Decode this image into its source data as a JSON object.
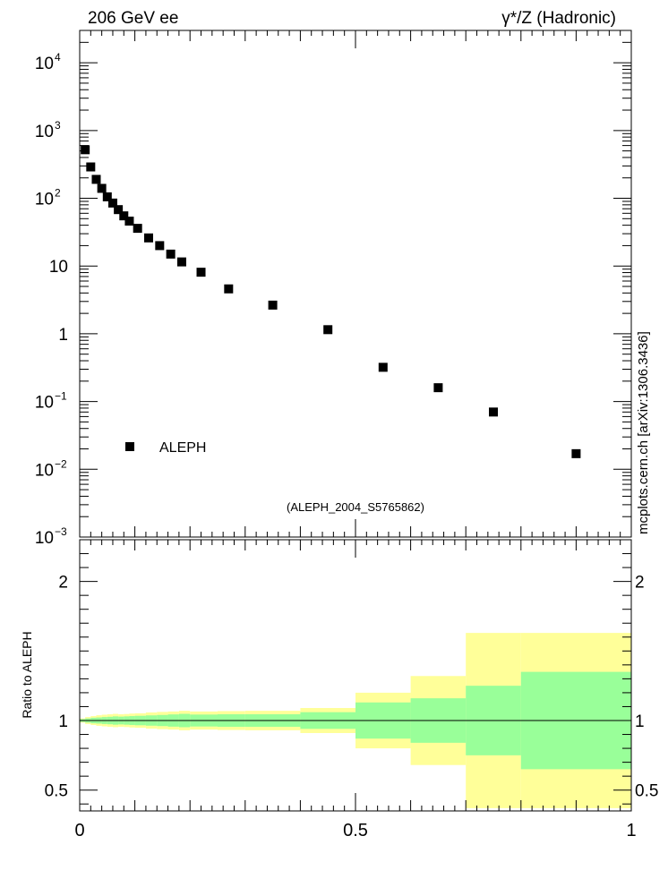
{
  "header": {
    "left_label": "206 GeV ee",
    "right_label": "γ*/Z (Hadronic)"
  },
  "side_label": "mcplots.cern.ch [arXiv:1306.3436]",
  "analysis_label": "(ALEPH_2004_S5765862)",
  "colors": {
    "marker": "#000000",
    "band_inner": "#99ff99",
    "band_outer": "#ffff99",
    "analysis_label": "#999999",
    "side_label": "#888888"
  },
  "chart_data": [
    {
      "type": "scatter",
      "panel": "main",
      "series": [
        {
          "name": "ALEPH",
          "x": [
            0.01,
            0.02,
            0.03,
            0.04,
            0.05,
            0.06,
            0.07,
            0.08,
            0.09,
            0.105,
            0.125,
            0.145,
            0.165,
            0.185,
            0.22,
            0.27,
            0.35,
            0.45,
            0.55,
            0.65,
            0.75,
            0.9
          ],
          "y": [
            520,
            290,
            190,
            140,
            105,
            85,
            68,
            55,
            46,
            36,
            26,
            20,
            15,
            11.5,
            8.1,
            4.6,
            2.65,
            1.15,
            0.32,
            0.16,
            0.07,
            0.017
          ]
        }
      ],
      "ylog": true,
      "ylim": [
        0.001,
        30000
      ],
      "xlim": [
        0,
        1
      ],
      "y_ticks": [
        {
          "value": 10000,
          "base": "10",
          "exp": "4"
        },
        {
          "value": 1000,
          "base": "10",
          "exp": "3"
        },
        {
          "value": 100,
          "base": "10",
          "exp": "2"
        },
        {
          "value": 10,
          "base": "10",
          "exp": ""
        },
        {
          "value": 1,
          "base": "1",
          "exp": ""
        },
        {
          "value": 0.1,
          "base": "10",
          "exp": "−1"
        },
        {
          "value": 0.01,
          "base": "10",
          "exp": "−2"
        },
        {
          "value": 0.001,
          "base": "10",
          "exp": "−3"
        }
      ],
      "legend": {
        "label": "ALEPH",
        "position": "lower-left"
      }
    },
    {
      "type": "area",
      "panel": "ratio",
      "ylabel": "Ratio to ALEPH",
      "xlim": [
        0,
        1
      ],
      "ylim": [
        0.35,
        2.3
      ],
      "x_ticks": [
        "0",
        "0.5",
        "1"
      ],
      "y_ticks": [
        {
          "value": 0.5,
          "label": "0.5"
        },
        {
          "value": 1,
          "label": "1"
        },
        {
          "value": 2,
          "label": "2"
        }
      ],
      "reference_line": 1,
      "bins": [
        {
          "lo": 0.0,
          "hi": 0.01,
          "inner": [
            0.99,
            1.01
          ],
          "outer": [
            0.985,
            1.015
          ]
        },
        {
          "lo": 0.01,
          "hi": 0.02,
          "inner": [
            0.985,
            1.015
          ],
          "outer": [
            0.975,
            1.025
          ]
        },
        {
          "lo": 0.02,
          "hi": 0.03,
          "inner": [
            0.98,
            1.02
          ],
          "outer": [
            0.968,
            1.032
          ]
        },
        {
          "lo": 0.03,
          "hi": 0.04,
          "inner": [
            0.978,
            1.022
          ],
          "outer": [
            0.962,
            1.038
          ]
        },
        {
          "lo": 0.04,
          "hi": 0.05,
          "inner": [
            0.975,
            1.025
          ],
          "outer": [
            0.958,
            1.042
          ]
        },
        {
          "lo": 0.05,
          "hi": 0.06,
          "inner": [
            0.973,
            1.027
          ],
          "outer": [
            0.955,
            1.045
          ]
        },
        {
          "lo": 0.06,
          "hi": 0.07,
          "inner": [
            0.97,
            1.03
          ],
          "outer": [
            0.952,
            1.048
          ]
        },
        {
          "lo": 0.07,
          "hi": 0.08,
          "inner": [
            0.972,
            1.028
          ],
          "outer": [
            0.955,
            1.045
          ]
        },
        {
          "lo": 0.08,
          "hi": 0.09,
          "inner": [
            0.97,
            1.03
          ],
          "outer": [
            0.953,
            1.047
          ]
        },
        {
          "lo": 0.09,
          "hi": 0.1,
          "inner": [
            0.968,
            1.032
          ],
          "outer": [
            0.95,
            1.05
          ]
        },
        {
          "lo": 0.1,
          "hi": 0.12,
          "inner": [
            0.966,
            1.034
          ],
          "outer": [
            0.948,
            1.052
          ]
        },
        {
          "lo": 0.12,
          "hi": 0.14,
          "inner": [
            0.963,
            1.037
          ],
          "outer": [
            0.942,
            1.058
          ]
        },
        {
          "lo": 0.14,
          "hi": 0.16,
          "inner": [
            0.96,
            1.04
          ],
          "outer": [
            0.938,
            1.062
          ]
        },
        {
          "lo": 0.16,
          "hi": 0.18,
          "inner": [
            0.956,
            1.044
          ],
          "outer": [
            0.935,
            1.065
          ]
        },
        {
          "lo": 0.18,
          "hi": 0.2,
          "inner": [
            0.952,
            1.048
          ],
          "outer": [
            0.93,
            1.07
          ]
        },
        {
          "lo": 0.2,
          "hi": 0.25,
          "inner": [
            0.957,
            1.043
          ],
          "outer": [
            0.935,
            1.065
          ]
        },
        {
          "lo": 0.25,
          "hi": 0.3,
          "inner": [
            0.955,
            1.045
          ],
          "outer": [
            0.932,
            1.068
          ]
        },
        {
          "lo": 0.3,
          "hi": 0.4,
          "inner": [
            0.955,
            1.045
          ],
          "outer": [
            0.93,
            1.07
          ]
        },
        {
          "lo": 0.4,
          "hi": 0.5,
          "inner": [
            0.94,
            1.06
          ],
          "outer": [
            0.91,
            1.09
          ]
        },
        {
          "lo": 0.5,
          "hi": 0.6,
          "inner": [
            0.87,
            1.13
          ],
          "outer": [
            0.8,
            1.2
          ]
        },
        {
          "lo": 0.6,
          "hi": 0.7,
          "inner": [
            0.84,
            1.16
          ],
          "outer": [
            0.68,
            1.32
          ]
        },
        {
          "lo": 0.7,
          "hi": 0.8,
          "inner": [
            0.75,
            1.25
          ],
          "outer": [
            0.37,
            1.63
          ]
        },
        {
          "lo": 0.8,
          "hi": 1.0,
          "inner": [
            0.65,
            1.35
          ],
          "outer": [
            0.37,
            1.63
          ]
        }
      ]
    }
  ]
}
